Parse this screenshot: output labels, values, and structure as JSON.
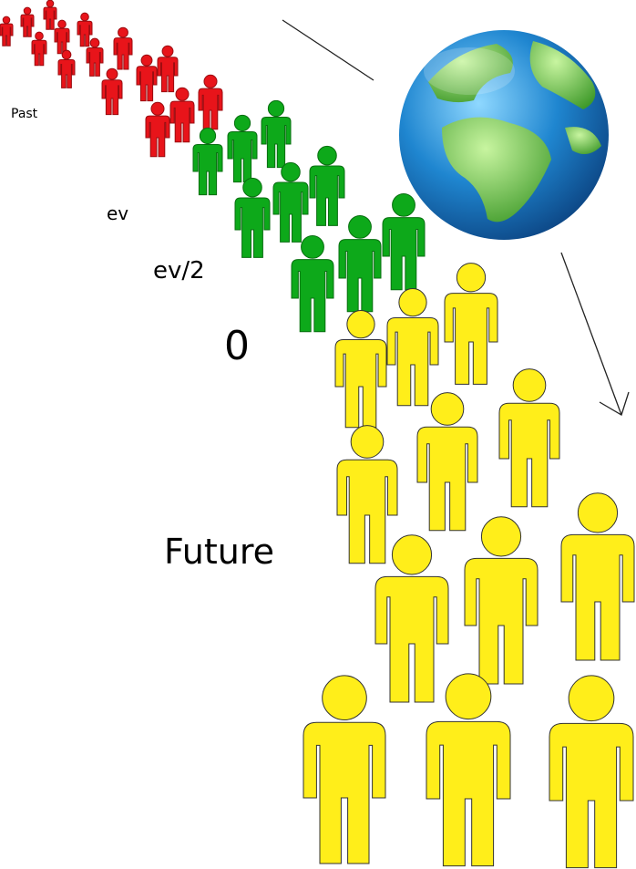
{
  "labels": {
    "past": "Past",
    "ev": "ev",
    "ev_half": "ev/2",
    "zero": "0",
    "future": "Future"
  }
}
